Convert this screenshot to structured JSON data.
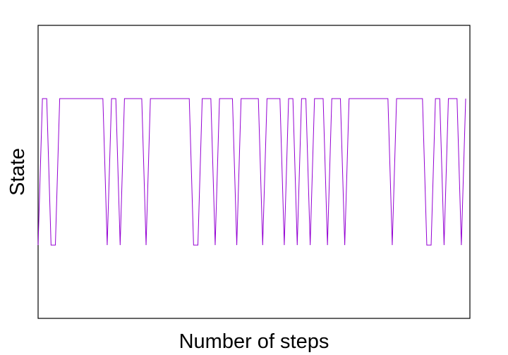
{
  "chart_data": {
    "type": "line",
    "title": "",
    "xlabel": "Number of steps",
    "ylabel": "State",
    "grid": false,
    "legend": "none",
    "line_color": "#9400D3",
    "xlim": [
      1,
      100
    ],
    "ylim": [
      0.5,
      2.5
    ],
    "series": [
      {
        "x": [
          1,
          2,
          3,
          4,
          5,
          6,
          7,
          8,
          9,
          10,
          11,
          12,
          13,
          14,
          15,
          16,
          17,
          18,
          19,
          20,
          21,
          22,
          23,
          24,
          25,
          26,
          27,
          28,
          29,
          30,
          31,
          32,
          33,
          34,
          35,
          36,
          37,
          38,
          39,
          40,
          41,
          42,
          43,
          44,
          45,
          46,
          47,
          48,
          49,
          50,
          51,
          52,
          53,
          54,
          55,
          56,
          57,
          58,
          59,
          60,
          61,
          62,
          63,
          64,
          65,
          66,
          67,
          68,
          69,
          70,
          71,
          72,
          73,
          74,
          75,
          76,
          77,
          78,
          79,
          80,
          81,
          82,
          83,
          84,
          85,
          86,
          87,
          88,
          89,
          90,
          91,
          92,
          93,
          94,
          95,
          96,
          97,
          98,
          99,
          100
        ],
        "y": [
          1,
          2,
          2,
          1,
          1,
          2,
          2,
          2,
          2,
          2,
          2,
          2,
          2,
          2,
          2,
          2,
          1,
          2,
          2,
          1,
          2,
          2,
          2,
          2,
          2,
          1,
          2,
          2,
          2,
          2,
          2,
          2,
          2,
          2,
          2,
          2,
          1,
          1,
          2,
          2,
          2,
          1,
          2,
          2,
          2,
          2,
          1,
          2,
          2,
          2,
          2,
          2,
          1,
          2,
          2,
          2,
          2,
          1,
          2,
          2,
          1,
          2,
          2,
          1,
          2,
          2,
          2,
          1,
          2,
          2,
          2,
          1,
          2,
          2,
          2,
          2,
          2,
          2,
          2,
          2,
          2,
          2,
          1,
          2,
          2,
          2,
          2,
          2,
          2,
          2,
          1,
          1,
          2,
          2,
          1,
          2,
          2,
          2,
          1,
          2
        ]
      }
    ]
  }
}
